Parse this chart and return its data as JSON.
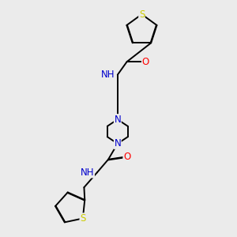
{
  "bg_color": "#ebebeb",
  "atom_colors": {
    "C": "#000000",
    "N": "#0000cc",
    "O": "#ff0000",
    "S": "#cccc00",
    "H": "#5555aa"
  },
  "bond_color": "#000000",
  "bond_width": 1.4,
  "font_size_atom": 8.5
}
